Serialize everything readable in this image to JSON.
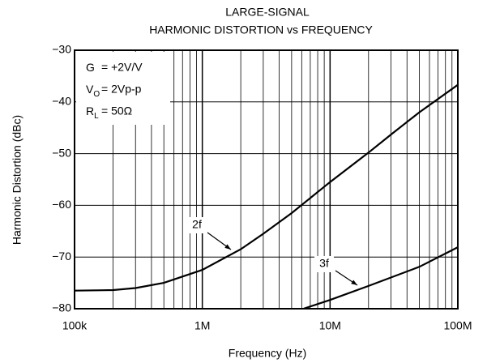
{
  "chart_data": {
    "type": "line",
    "title": [
      "LARGE-SIGNAL",
      "HARMONIC DISTORTION vs FREQUENCY"
    ],
    "xlabel": "Frequency (Hz)",
    "ylabel": "Harmonic Distortion (dBc)",
    "xscale": "log",
    "xlim": [
      100000,
      100000000
    ],
    "ylim": [
      -80,
      -30
    ],
    "xticks": [
      {
        "value": 100000,
        "label": "100k"
      },
      {
        "value": 1000000,
        "label": "1M"
      },
      {
        "value": 10000000,
        "label": "10M"
      },
      {
        "value": 100000000,
        "label": "100M"
      }
    ],
    "yticks": [
      {
        "value": -30,
        "label": "−30"
      },
      {
        "value": -40,
        "label": "−40"
      },
      {
        "value": -50,
        "label": "−50"
      },
      {
        "value": -60,
        "label": "−60"
      },
      {
        "value": -70,
        "label": "−70"
      },
      {
        "value": -80,
        "label": "−80"
      }
    ],
    "grid": true,
    "series": [
      {
        "name": "2f",
        "color": "#000000",
        "x": [
          100000,
          200000,
          300000,
          500000,
          1000000,
          2000000,
          3000000,
          5000000,
          10000000,
          20000000,
          30000000,
          50000000,
          100000000
        ],
        "values": [
          -76.5,
          -76.4,
          -76,
          -75,
          -72.5,
          -68.5,
          -65.5,
          -61.5,
          -55.5,
          -49.8,
          -46.3,
          -42,
          -36.7
        ]
      },
      {
        "name": "3f",
        "color": "#000000",
        "x": [
          6200000,
          10000000,
          20000000,
          50000000,
          100000000
        ],
        "values": [
          -80,
          -78.3,
          -75.6,
          -71.9,
          -68.1
        ]
      }
    ],
    "conditions": [
      {
        "symbol": "G",
        "text": "= +2V/V"
      },
      {
        "symbol": "V",
        "sub": "O",
        "text": "= 2Vp-p"
      },
      {
        "symbol": "R",
        "sub": "L",
        "text": "= 50Ω"
      }
    ]
  }
}
